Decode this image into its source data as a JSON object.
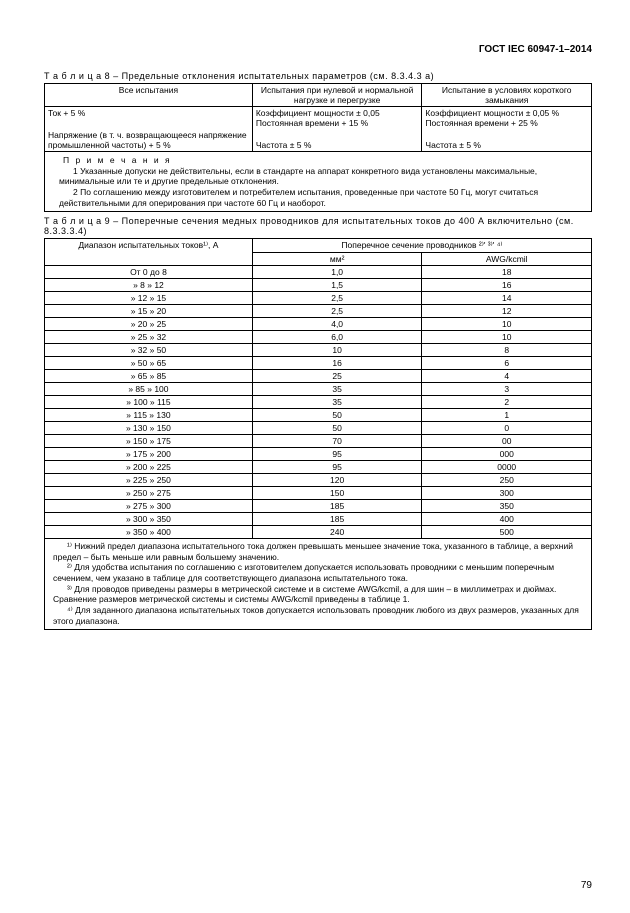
{
  "doc_title": "ГОСТ IEC 60947-1–2014",
  "page_number": "79",
  "table8": {
    "caption": "Т а б л и ц а   8 – Предельные отклонения испытательных параметров (см. 8.3.4.3 a)",
    "head_all": "Все испытания",
    "head_b": "Испытания при нулевой и нормальной нагрузке и перегрузке",
    "head_c": "Испытание в условиях короткого замыкания",
    "r1a": "Ток + 5 %",
    "r1b": "Коэффициент мощности ± 0,05\nПостоянная времени + 15 %",
    "r1c": "Коэффициент мощности ± 0,05 %\nПостоянная времени + 25 %",
    "r2a": "Напряжение (в т. ч. возвращающееся напряжение промышленной частоты) + 5 %",
    "r2b": "Частота ± 5 %",
    "r2c": "Частота ± 5 %",
    "notes_title": "П р и м е ч а н и я",
    "note1": "1 Указанные допуски не действительны, если в стандарте на аппарат конкретного вида установлены максимальные, минимальные или те и другие предельные отклонения.",
    "note2": "2 По соглашению между изготовителем и потребителем испытания, проведенные при частоте 50 Гц, могут считаться действительными для оперирования при частоте 60 Гц и наоборот."
  },
  "table9": {
    "caption": "Т а б л и ц а   9 – Поперечные сечения медных проводников для испытательных токов до 400 А включительно (см. 8.3.3.3.4)",
    "head_a": "Диапазон испытательных токов¹⁾, А",
    "head_group": "Поперечное сечение проводников ²⁾' ³⁾' ⁴⁾",
    "head_b": "мм²",
    "head_c": "AWG/kcmil",
    "rows": [
      {
        "r": "От 0 до 8",
        "mm": "1,0",
        "awg": "18"
      },
      {
        "r": "» 8 » 12",
        "mm": "1,5",
        "awg": "16"
      },
      {
        "r": "» 12 » 15",
        "mm": "2,5",
        "awg": "14"
      },
      {
        "r": "» 15 » 20",
        "mm": "2,5",
        "awg": "12"
      },
      {
        "r": "» 20 » 25",
        "mm": "4,0",
        "awg": "10"
      },
      {
        "r": "» 25 » 32",
        "mm": "6,0",
        "awg": "10"
      },
      {
        "r": "» 32 » 50",
        "mm": "10",
        "awg": "8"
      },
      {
        "r": "» 50 » 65",
        "mm": "16",
        "awg": "6"
      },
      {
        "r": "» 65 » 85",
        "mm": "25",
        "awg": "4"
      },
      {
        "r": "» 85 » 100",
        "mm": "35",
        "awg": "3"
      },
      {
        "r": "» 100 » 115",
        "mm": "35",
        "awg": "2"
      },
      {
        "r": "» 115 » 130",
        "mm": "50",
        "awg": "1"
      },
      {
        "r": "» 130 » 150",
        "mm": "50",
        "awg": "0"
      },
      {
        "r": "» 150 » 175",
        "mm": "70",
        "awg": "00"
      },
      {
        "r": "» 175 » 200",
        "mm": "95",
        "awg": "000"
      },
      {
        "r": "» 200 » 225",
        "mm": "95",
        "awg": "0000"
      },
      {
        "r": "» 225 » 250",
        "mm": "120",
        "awg": "250"
      },
      {
        "r": "» 250 » 275",
        "mm": "150",
        "awg": "300"
      },
      {
        "r": "» 275 » 300",
        "mm": "185",
        "awg": "350"
      },
      {
        "r": "» 300 » 350",
        "mm": "185",
        "awg": "400"
      },
      {
        "r": "» 350 » 400",
        "mm": "240",
        "awg": "500"
      }
    ],
    "fn1": "¹⁾ Нижний предел диапазона испытательного тока должен превышать меньшее значение тока, указанного в таблице, а верхний предел – быть меньше или равным большему значению.",
    "fn2": "²⁾ Для удобства испытания по соглашению с изготовителем допускается использовать проводники с меньшим поперечным сечением, чем указано в таблице для соответствующего диапазона испытательного тока.",
    "fn3": "³⁾ Для проводов приведены размеры в метрической системе и в системе AWG/kcmil, а для шин – в миллиметрах и дюймах. Сравнение размеров метрической системы и системы AWG/kcmil приведены в таблице 1.",
    "fn4": "⁴⁾ Для заданного диапазона испытательных токов допускается использовать проводник любого из двух размеров, указанных для этого диапазона."
  }
}
